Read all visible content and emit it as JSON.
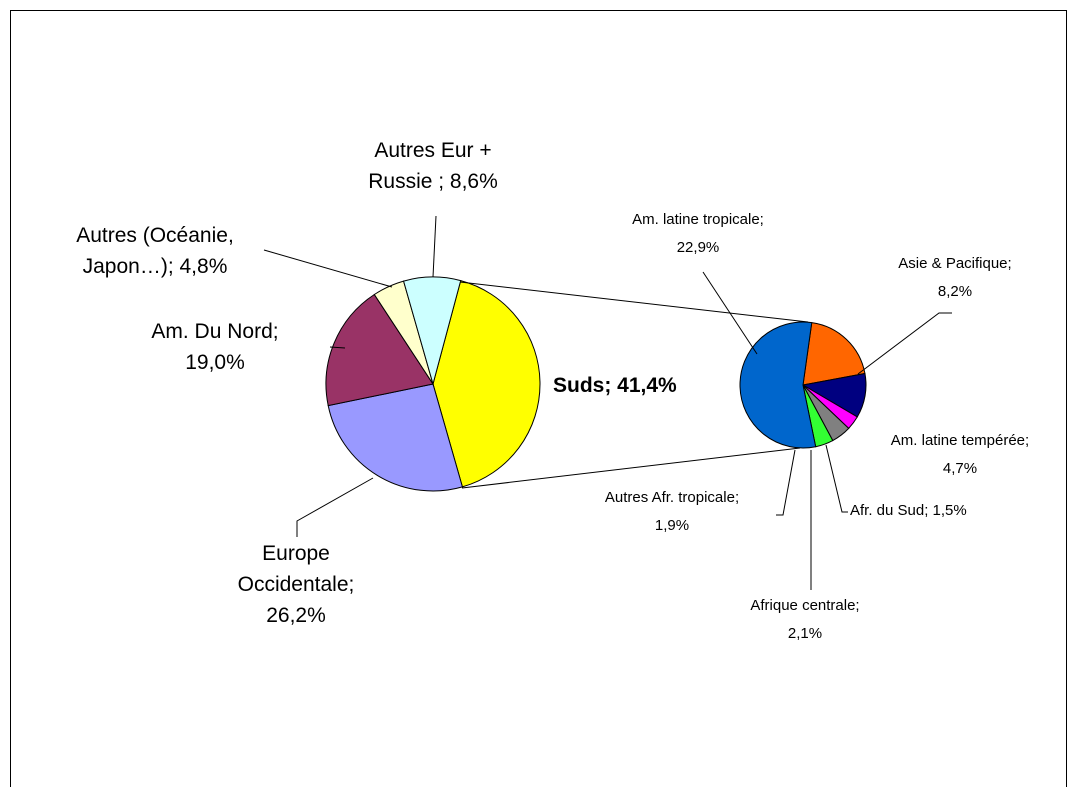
{
  "chart_data": {
    "type": "pie",
    "pies": [
      {
        "values": [
          41.4,
          26.2,
          19.0,
          4.8,
          8.6
        ],
        "value_labels": [
          "Suds; 41,4%",
          "Europe\nOccidentale;\n26,2%",
          "Am. Du Nord;\n19,0%",
          "Autres (Océanie,\nJapon…); 4,8%",
          "Autres Eur +\nRussie ; 8,6%"
        ],
        "colors": [
          "#ffff00",
          "#9999ff",
          "#993366",
          "#ffffcc",
          "#ccffff"
        ]
      },
      {
        "values": [
          8.2,
          4.7,
          1.5,
          2.1,
          1.9,
          22.9
        ],
        "value_labels": [
          "Asie & Pacifique;\n8,2%",
          "Am. latine tempérée;\n4,7%",
          "Afr. du Sud; 1,5%",
          "Afrique centrale;\n2,1%",
          "Autres Afr. tropicale;\n1,9%",
          "Am. latine tropicale;\n22,9%"
        ],
        "colors": [
          "#ff6600",
          "#000080",
          "#ff00ff",
          "#808080",
          "#33ff33",
          "#0066cc"
        ]
      }
    ]
  }
}
